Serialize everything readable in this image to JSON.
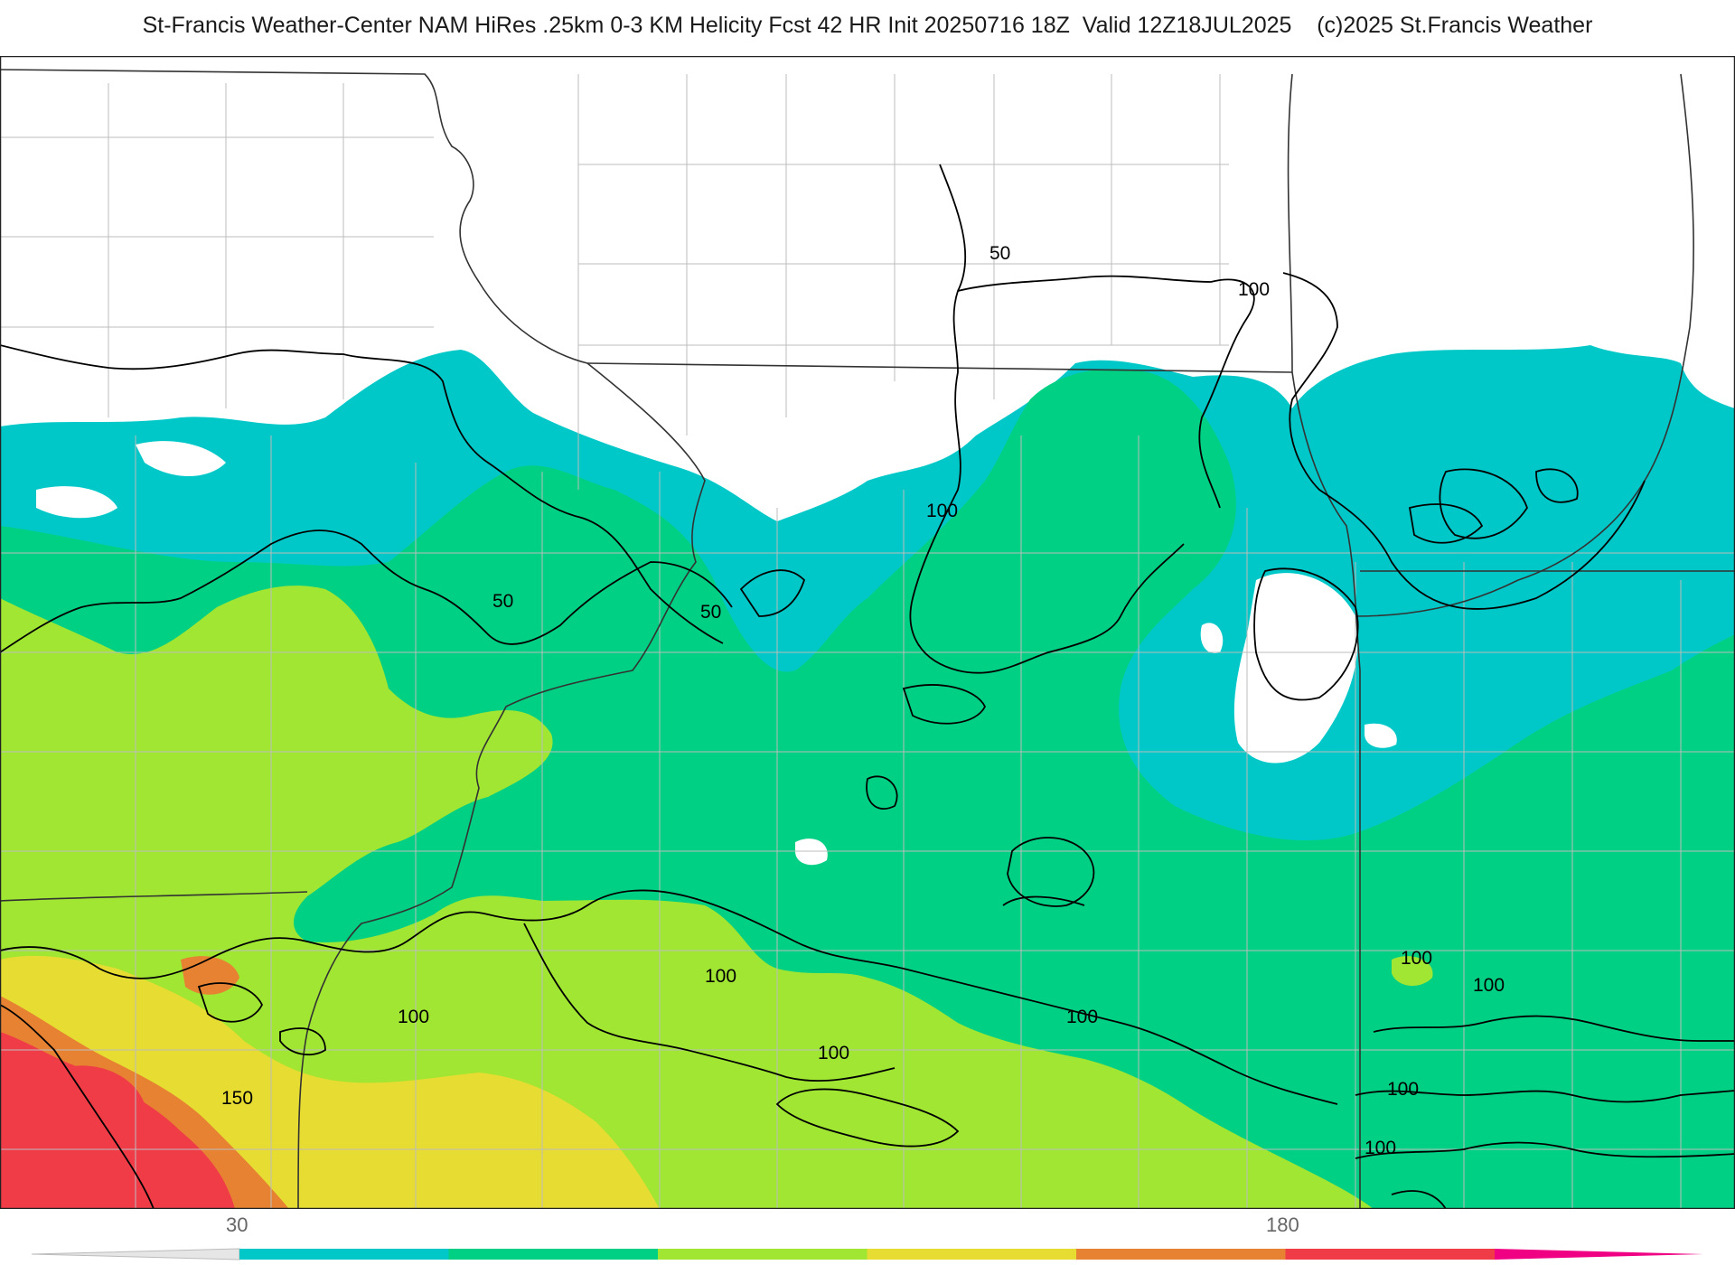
{
  "header": {
    "title": "St-Francis Weather-Center NAM HiRes .25km 0-3 KM Helicity Fcst 42 HR Init 20250716 18Z  Valid 12Z18JUL2025    (c)2025 St.Francis Weather"
  },
  "map": {
    "field": "0-3 KM Helicity",
    "contour_labels": [
      "50",
      "50",
      "50",
      "100",
      "100",
      "100",
      "100",
      "100",
      "100",
      "100",
      "100",
      "100",
      "100",
      "150"
    ]
  },
  "colorbar": {
    "tick_labels": [
      "30",
      "180"
    ],
    "colors": [
      "#00c8c8",
      "#00d084",
      "#a0e632",
      "#e6dc32",
      "#e68232",
      "#f03c46",
      "#f00082"
    ],
    "low_color": "#e6e6e6"
  }
}
